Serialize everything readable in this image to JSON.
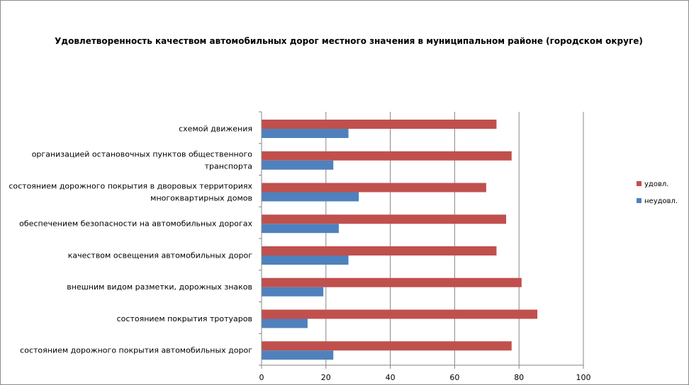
{
  "chart_data": {
    "type": "bar",
    "orientation": "horizontal",
    "title": "Удовлетворенность качеством автомобильных дорог местного значения в муниципальном районе (городском округе)",
    "categories": [
      [
        "схемой движения"
      ],
      [
        "организацией остановочных пунктов общественного",
        "транспорта"
      ],
      [
        "состоянием дорожного покрытия в дворовых территориях",
        "многоквартирных домов"
      ],
      [
        "обеспечением  безопасности на автомобильных дорогах"
      ],
      [
        "качеством освещения  автомобильных дорог"
      ],
      [
        "внешним  видом разметки, дорожных знаков"
      ],
      [
        "состоянием  покрытия тротуаров"
      ],
      [
        "состоянием дорожного покрытия автомобильных дорог"
      ]
    ],
    "series": [
      {
        "name": "удовл.",
        "color": "#c0504d",
        "values": [
          73,
          77.7,
          69.8,
          76,
          73,
          80.8,
          85.7,
          77.7
        ]
      },
      {
        "name": "неудовл.",
        "color": "#4f81bd",
        "values": [
          27,
          22.3,
          30.2,
          24,
          27,
          19.2,
          14.3,
          22.3
        ]
      }
    ],
    "xlim": [
      0,
      100
    ],
    "xticks": [
      "0",
      "20",
      "40",
      "60",
      "80",
      "100"
    ],
    "grid": true,
    "legend": "right"
  }
}
